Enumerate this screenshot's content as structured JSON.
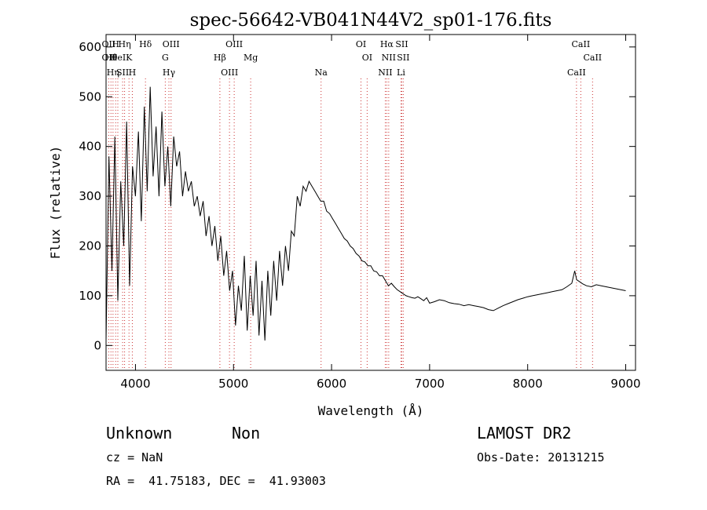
{
  "chart_data": {
    "type": "line",
    "title": "spec-56642-VB041N44V2_sp01-176.fits",
    "xlabel": "Wavelength (Å)",
    "ylabel": "Flux (relative)",
    "xlim": [
      3700,
      9100
    ],
    "ylim": [
      -50,
      625
    ],
    "xticks": [
      4000,
      5000,
      6000,
      7000,
      8000,
      9000
    ],
    "yticks": [
      0,
      100,
      200,
      300,
      400,
      500,
      600
    ],
    "grid": false,
    "line_color": "#000000",
    "marker_color": "#cc3333",
    "series": [
      {
        "x": [
          3700,
          3730,
          3760,
          3790,
          3820,
          3850,
          3880,
          3910,
          3940,
          3970,
          4000,
          4030,
          4060,
          4090,
          4120,
          4150,
          4180,
          4210,
          4240,
          4270,
          4300,
          4330,
          4360,
          4390,
          4420,
          4450,
          4480,
          4510,
          4540,
          4570,
          4600,
          4630,
          4660,
          4690,
          4720,
          4750,
          4780,
          4810,
          4840,
          4870,
          4900,
          4930,
          4960,
          4990,
          5020,
          5050,
          5080,
          5110,
          5140,
          5170,
          5200,
          5230,
          5260,
          5290,
          5320,
          5350,
          5380,
          5410,
          5440,
          5470,
          5500,
          5530,
          5560,
          5590,
          5620,
          5650,
          5680,
          5710,
          5740,
          5770,
          5800,
          5830,
          5860,
          5890,
          5920,
          5950,
          5980,
          6010,
          6040,
          6070,
          6100,
          6130,
          6160,
          6190,
          6220,
          6250,
          6280,
          6310,
          6340,
          6370,
          6400,
          6430,
          6460,
          6490,
          6520,
          6550,
          6580,
          6610,
          6640,
          6670,
          6700,
          6730,
          6760,
          6790,
          6820,
          6850,
          6880,
          6910,
          6940,
          6970,
          7000,
          7050,
          7100,
          7150,
          7200,
          7250,
          7300,
          7350,
          7400,
          7450,
          7500,
          7550,
          7600,
          7650,
          7700,
          7750,
          7800,
          7850,
          7900,
          7950,
          8000,
          8050,
          8100,
          8150,
          8200,
          8250,
          8300,
          8350,
          8400,
          8450,
          8480,
          8500,
          8530,
          8560,
          8600,
          8650,
          8700,
          8750,
          8800,
          8850,
          8900,
          8950,
          9000
        ],
        "y": [
          10,
          380,
          150,
          420,
          90,
          330,
          200,
          450,
          120,
          360,
          300,
          430,
          250,
          480,
          310,
          520,
          340,
          440,
          300,
          470,
          320,
          400,
          280,
          420,
          360,
          390,
          300,
          350,
          310,
          330,
          280,
          300,
          260,
          290,
          220,
          260,
          200,
          240,
          170,
          220,
          140,
          190,
          110,
          150,
          40,
          120,
          70,
          180,
          30,
          140,
          60,
          170,
          20,
          130,
          10,
          150,
          60,
          170,
          90,
          190,
          120,
          200,
          150,
          230,
          220,
          300,
          280,
          320,
          310,
          330,
          320,
          310,
          300,
          290,
          290,
          270,
          265,
          255,
          245,
          235,
          225,
          215,
          210,
          200,
          195,
          185,
          180,
          170,
          168,
          160,
          160,
          150,
          148,
          140,
          140,
          130,
          120,
          125,
          118,
          112,
          108,
          104,
          100,
          98,
          96,
          95,
          98,
          94,
          90,
          96,
          85,
          88,
          92,
          90,
          86,
          84,
          83,
          80,
          82,
          80,
          78,
          76,
          72,
          70,
          75,
          80,
          84,
          88,
          92,
          95,
          98,
          100,
          102,
          104,
          106,
          108,
          110,
          112,
          118,
          125,
          150,
          132,
          128,
          124,
          120,
          118,
          122,
          120,
          118,
          116,
          114,
          112,
          110
        ]
      }
    ],
    "lines": [
      {
        "x": 3727,
        "labels": [
          "OII",
          "OII"
        ]
      },
      {
        "x": 3750,
        "labels": [
          "Hθ"
        ]
      },
      {
        "x": 3771,
        "labels": [
          "Hη"
        ]
      },
      {
        "x": 3798,
        "labels": [
          "H"
        ]
      },
      {
        "x": 3820,
        "labels": [
          "HeI"
        ]
      },
      {
        "x": 3869,
        "labels": [
          "SII"
        ]
      },
      {
        "x": 3889,
        "labels": [
          "Hη"
        ]
      },
      {
        "x": 3934,
        "labels": [
          "K"
        ]
      },
      {
        "x": 3968,
        "labels": [
          "H"
        ]
      },
      {
        "x": 4102,
        "labels": [
          "Hδ"
        ]
      },
      {
        "x": 4304,
        "labels": [
          "G"
        ]
      },
      {
        "x": 4341,
        "labels": [
          "Hγ"
        ]
      },
      {
        "x": 4363,
        "labels": [
          "OIII"
        ]
      },
      {
        "x": 4861,
        "labels": [
          "Hβ"
        ]
      },
      {
        "x": 4959,
        "labels": [
          "OIII"
        ]
      },
      {
        "x": 5007,
        "labels": [
          "OIII"
        ]
      },
      {
        "x": 5175,
        "labels": [
          "Mg"
        ]
      },
      {
        "x": 5893,
        "labels": [
          "Na"
        ]
      },
      {
        "x": 6300,
        "labels": [
          "OI"
        ]
      },
      {
        "x": 6363,
        "labels": [
          "OI"
        ]
      },
      {
        "x": 6548,
        "labels": [
          "NII"
        ]
      },
      {
        "x": 6563,
        "labels": [
          "Hα"
        ]
      },
      {
        "x": 6583,
        "labels": [
          "NII"
        ]
      },
      {
        "x": 6708,
        "labels": [
          "Li"
        ]
      },
      {
        "x": 6716,
        "labels": [
          "SII"
        ]
      },
      {
        "x": 6731,
        "labels": [
          "SII"
        ]
      },
      {
        "x": 8498,
        "labels": [
          "CaII"
        ]
      },
      {
        "x": 8542,
        "labels": [
          "CaII"
        ]
      },
      {
        "x": 8662,
        "labels": [
          "CaII"
        ]
      }
    ]
  },
  "info": {
    "class": "Unknown",
    "subclass": "Non",
    "survey": "LAMOST DR2",
    "cz": "cz = NaN",
    "obsdate": "Obs-Date: 20131215",
    "radec": "RA =  41.75183, DEC =  41.93003"
  }
}
